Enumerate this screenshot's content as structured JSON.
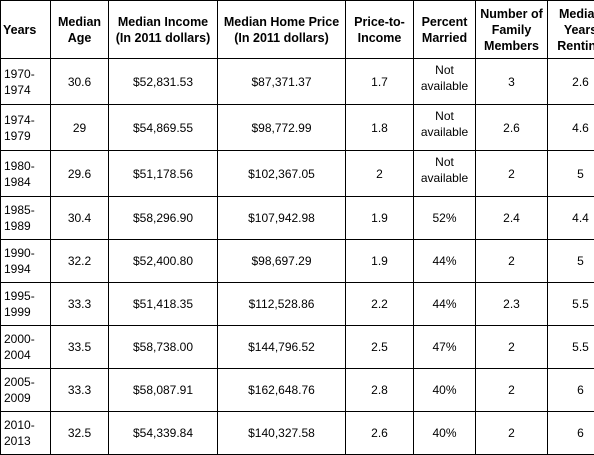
{
  "table": {
    "headers": [
      "Years",
      "Median Age",
      "Median Income (In 2011 dollars)",
      "Median Home Price (In 2011 dollars)",
      "Price-to-Income",
      "Percent Married",
      "Number of Family Members",
      "Median Years Renting"
    ],
    "rows": [
      {
        "years": "1970-1974",
        "age": "30.6",
        "income": "$52,831.53",
        "price": "$87,371.37",
        "pti": "1.7",
        "married": "Not available",
        "family": "3",
        "renting": "2.6"
      },
      {
        "years": "1974-1979",
        "age": "29",
        "income": "$54,869.55",
        "price": "$98,772.99",
        "pti": "1.8",
        "married": "Not available",
        "family": "2.6",
        "renting": "4.6"
      },
      {
        "years": "1980-1984",
        "age": "29.6",
        "income": "$51,178.56",
        "price": "$102,367.05",
        "pti": "2",
        "married": "Not available",
        "family": "2",
        "renting": "5"
      },
      {
        "years": "1985-1989",
        "age": "30.4",
        "income": "$58,296.90",
        "price": "$107,942.98",
        "pti": "1.9",
        "married": "52%",
        "family": "2.4",
        "renting": "4.4"
      },
      {
        "years": "1990-1994",
        "age": "32.2",
        "income": "$52,400.80",
        "price": "$98,697.29",
        "pti": "1.9",
        "married": "44%",
        "family": "2",
        "renting": "5"
      },
      {
        "years": "1995-1999",
        "age": "33.3",
        "income": "$51,418.35",
        "price": "$112,528.86",
        "pti": "2.2",
        "married": "44%",
        "family": "2.3",
        "renting": "5.5"
      },
      {
        "years": "2000-2004",
        "age": "33.5",
        "income": "$58,738.00",
        "price": "$144,796.52",
        "pti": "2.5",
        "married": "47%",
        "family": "2",
        "renting": "5.5"
      },
      {
        "years": "2005-2009",
        "age": "33.3",
        "income": "$58,087.91",
        "price": "$162,648.76",
        "pti": "2.8",
        "married": "40%",
        "family": "2",
        "renting": "6"
      },
      {
        "years": "2010-2013",
        "age": "32.5",
        "income": "$54,339.84",
        "price": "$140,327.58",
        "pti": "2.6",
        "married": "40%",
        "family": "2",
        "renting": "6"
      }
    ]
  }
}
